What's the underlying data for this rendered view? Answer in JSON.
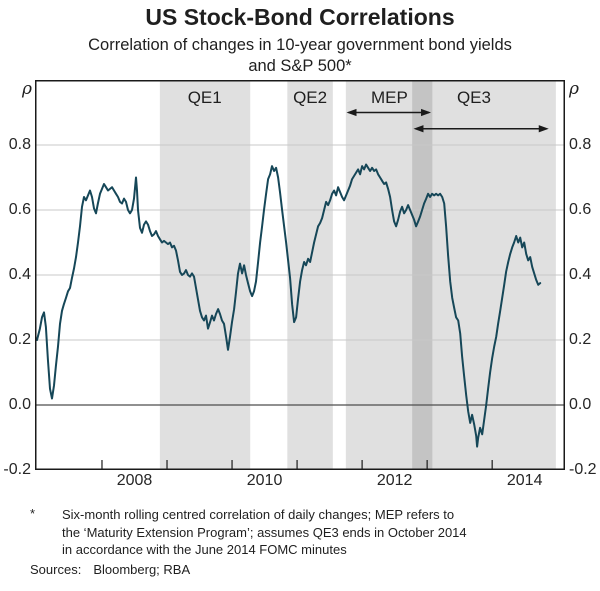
{
  "header": {
    "title": "US Stock-Bond Correlations",
    "subtitle_lines": [
      "Correlation of changes in 10-year government bond yields",
      "and S&P 500*"
    ]
  },
  "axis_units": {
    "left": "ρ",
    "right": "ρ"
  },
  "footnote": {
    "marker": "*",
    "lines": [
      "Six-month rolling centred correlation of daily changes; MEP refers to",
      "the ‘Maturity Extension Program’; assumes QE3 ends in October 2014",
      "in accordance with the June 2014 FOMC minutes"
    ]
  },
  "sources": {
    "label": "Sources:",
    "value": "Bloomberg; RBA"
  },
  "colors": {
    "line": "#164758",
    "band": "rgba(0,0,0,0.12)",
    "grid": "#c8c8c8",
    "zero_line": "#4d4d4d",
    "frame": "#1a1a1a",
    "text": "#1f1f1f"
  },
  "chart_data": {
    "type": "line",
    "title": "US Stock-Bond Correlations",
    "ylabel": "ρ",
    "ylim": [
      -0.2,
      1.0
    ],
    "yticks": [
      -0.2,
      0.0,
      0.2,
      0.4,
      0.6,
      0.8
    ],
    "ytick_labels": [
      "-0.2",
      "0.0",
      "0.2",
      "0.4",
      "0.6",
      "0.8"
    ],
    "xlim": [
      2006.97,
      2015.12
    ],
    "xticks": [
      2008,
      2009,
      2010,
      2011,
      2012,
      2013,
      2014
    ],
    "xtick_labels": [
      {
        "x": 2008.5,
        "label": "2008"
      },
      {
        "x": 2010.5,
        "label": "2010"
      },
      {
        "x": 2012.5,
        "label": "2012"
      },
      {
        "x": 2014.5,
        "label": "2014"
      }
    ],
    "grid": "horizontal",
    "legend": "none",
    "bands": [
      {
        "label": "QE1",
        "start": 2008.89,
        "end": 2010.28,
        "label_x": 2009.58
      },
      {
        "label": "QE2",
        "start": 2010.85,
        "end": 2011.55,
        "label_x": 2011.2
      },
      {
        "label": "MEP",
        "start": 2011.75,
        "end": 2013.08,
        "label_x": 2012.42
      },
      {
        "label": "QE3",
        "start": 2012.77,
        "end": 2014.98,
        "label_x": 2013.72
      }
    ],
    "arrows": [
      {
        "from": 2011.76,
        "to": 2013.06,
        "y": 0.9
      },
      {
        "from": 2012.79,
        "to": 2014.87,
        "y": 0.85
      }
    ],
    "series": [
      {
        "name": "correlation",
        "color": "#164758",
        "points": [
          [
            2007.0,
            0.2
          ],
          [
            2007.046,
            0.235
          ],
          [
            2007.077,
            0.27
          ],
          [
            2007.108,
            0.285
          ],
          [
            2007.138,
            0.24
          ],
          [
            2007.169,
            0.14
          ],
          [
            2007.2,
            0.05
          ],
          [
            2007.231,
            0.02
          ],
          [
            2007.262,
            0.06
          ],
          [
            2007.292,
            0.12
          ],
          [
            2007.323,
            0.18
          ],
          [
            2007.354,
            0.25
          ],
          [
            2007.385,
            0.29
          ],
          [
            2007.415,
            0.31
          ],
          [
            2007.446,
            0.33
          ],
          [
            2007.477,
            0.35
          ],
          [
            2007.508,
            0.36
          ],
          [
            2007.538,
            0.39
          ],
          [
            2007.569,
            0.42
          ],
          [
            2007.6,
            0.455
          ],
          [
            2007.631,
            0.5
          ],
          [
            2007.662,
            0.55
          ],
          [
            2007.692,
            0.61
          ],
          [
            2007.723,
            0.64
          ],
          [
            2007.754,
            0.63
          ],
          [
            2007.785,
            0.645
          ],
          [
            2007.815,
            0.66
          ],
          [
            2007.846,
            0.64
          ],
          [
            2007.877,
            0.605
          ],
          [
            2007.908,
            0.59
          ],
          [
            2007.938,
            0.62
          ],
          [
            2007.969,
            0.65
          ],
          [
            2008.0,
            0.665
          ],
          [
            2008.031,
            0.68
          ],
          [
            2008.062,
            0.67
          ],
          [
            2008.092,
            0.66
          ],
          [
            2008.123,
            0.665
          ],
          [
            2008.154,
            0.67
          ],
          [
            2008.185,
            0.66
          ],
          [
            2008.215,
            0.65
          ],
          [
            2008.246,
            0.64
          ],
          [
            2008.277,
            0.625
          ],
          [
            2008.308,
            0.62
          ],
          [
            2008.338,
            0.635
          ],
          [
            2008.369,
            0.625
          ],
          [
            2008.4,
            0.6
          ],
          [
            2008.431,
            0.59
          ],
          [
            2008.462,
            0.6
          ],
          [
            2008.492,
            0.635
          ],
          [
            2008.523,
            0.7
          ],
          [
            2008.538,
            0.66
          ],
          [
            2008.554,
            0.6
          ],
          [
            2008.585,
            0.545
          ],
          [
            2008.615,
            0.53
          ],
          [
            2008.646,
            0.555
          ],
          [
            2008.677,
            0.565
          ],
          [
            2008.708,
            0.555
          ],
          [
            2008.738,
            0.535
          ],
          [
            2008.769,
            0.52
          ],
          [
            2008.8,
            0.525
          ],
          [
            2008.831,
            0.535
          ],
          [
            2008.862,
            0.52
          ],
          [
            2008.892,
            0.51
          ],
          [
            2008.923,
            0.5
          ],
          [
            2008.954,
            0.505
          ],
          [
            2008.985,
            0.5
          ],
          [
            2009.015,
            0.495
          ],
          [
            2009.046,
            0.5
          ],
          [
            2009.077,
            0.485
          ],
          [
            2009.108,
            0.49
          ],
          [
            2009.138,
            0.475
          ],
          [
            2009.169,
            0.445
          ],
          [
            2009.2,
            0.41
          ],
          [
            2009.231,
            0.4
          ],
          [
            2009.262,
            0.405
          ],
          [
            2009.292,
            0.415
          ],
          [
            2009.323,
            0.4
          ],
          [
            2009.354,
            0.395
          ],
          [
            2009.385,
            0.405
          ],
          [
            2009.415,
            0.395
          ],
          [
            2009.446,
            0.36
          ],
          [
            2009.477,
            0.325
          ],
          [
            2009.508,
            0.29
          ],
          [
            2009.538,
            0.27
          ],
          [
            2009.569,
            0.26
          ],
          [
            2009.6,
            0.275
          ],
          [
            2009.631,
            0.235
          ],
          [
            2009.662,
            0.255
          ],
          [
            2009.692,
            0.275
          ],
          [
            2009.723,
            0.26
          ],
          [
            2009.754,
            0.28
          ],
          [
            2009.785,
            0.295
          ],
          [
            2009.815,
            0.28
          ],
          [
            2009.846,
            0.26
          ],
          [
            2009.877,
            0.25
          ],
          [
            2009.908,
            0.21
          ],
          [
            2009.938,
            0.17
          ],
          [
            2009.969,
            0.21
          ],
          [
            2010.0,
            0.255
          ],
          [
            2010.031,
            0.295
          ],
          [
            2010.062,
            0.35
          ],
          [
            2010.092,
            0.405
          ],
          [
            2010.123,
            0.435
          ],
          [
            2010.154,
            0.405
          ],
          [
            2010.185,
            0.43
          ],
          [
            2010.215,
            0.4
          ],
          [
            2010.246,
            0.375
          ],
          [
            2010.277,
            0.35
          ],
          [
            2010.308,
            0.335
          ],
          [
            2010.338,
            0.35
          ],
          [
            2010.369,
            0.38
          ],
          [
            2010.4,
            0.44
          ],
          [
            2010.431,
            0.5
          ],
          [
            2010.462,
            0.55
          ],
          [
            2010.492,
            0.6
          ],
          [
            2010.523,
            0.65
          ],
          [
            2010.554,
            0.695
          ],
          [
            2010.585,
            0.71
          ],
          [
            2010.615,
            0.735
          ],
          [
            2010.646,
            0.72
          ],
          [
            2010.677,
            0.73
          ],
          [
            2010.708,
            0.7
          ],
          [
            2010.738,
            0.655
          ],
          [
            2010.769,
            0.6
          ],
          [
            2010.8,
            0.55
          ],
          [
            2010.831,
            0.5
          ],
          [
            2010.862,
            0.445
          ],
          [
            2010.892,
            0.39
          ],
          [
            2010.923,
            0.31
          ],
          [
            2010.954,
            0.255
          ],
          [
            2010.985,
            0.27
          ],
          [
            2011.015,
            0.325
          ],
          [
            2011.046,
            0.38
          ],
          [
            2011.077,
            0.415
          ],
          [
            2011.108,
            0.44
          ],
          [
            2011.138,
            0.43
          ],
          [
            2011.169,
            0.45
          ],
          [
            2011.2,
            0.44
          ],
          [
            2011.231,
            0.47
          ],
          [
            2011.262,
            0.5
          ],
          [
            2011.292,
            0.525
          ],
          [
            2011.323,
            0.55
          ],
          [
            2011.354,
            0.56
          ],
          [
            2011.385,
            0.575
          ],
          [
            2011.415,
            0.6
          ],
          [
            2011.446,
            0.625
          ],
          [
            2011.477,
            0.615
          ],
          [
            2011.508,
            0.63
          ],
          [
            2011.538,
            0.65
          ],
          [
            2011.569,
            0.66
          ],
          [
            2011.6,
            0.645
          ],
          [
            2011.631,
            0.67
          ],
          [
            2011.662,
            0.655
          ],
          [
            2011.692,
            0.64
          ],
          [
            2011.723,
            0.63
          ],
          [
            2011.754,
            0.645
          ],
          [
            2011.785,
            0.66
          ],
          [
            2011.815,
            0.675
          ],
          [
            2011.846,
            0.695
          ],
          [
            2011.877,
            0.705
          ],
          [
            2011.908,
            0.715
          ],
          [
            2011.938,
            0.725
          ],
          [
            2011.969,
            0.71
          ],
          [
            2012.0,
            0.735
          ],
          [
            2012.031,
            0.725
          ],
          [
            2012.062,
            0.74
          ],
          [
            2012.092,
            0.73
          ],
          [
            2012.123,
            0.72
          ],
          [
            2012.154,
            0.73
          ],
          [
            2012.185,
            0.72
          ],
          [
            2012.215,
            0.725
          ],
          [
            2012.246,
            0.71
          ],
          [
            2012.277,
            0.7
          ],
          [
            2012.308,
            0.69
          ],
          [
            2012.338,
            0.68
          ],
          [
            2012.369,
            0.685
          ],
          [
            2012.4,
            0.665
          ],
          [
            2012.431,
            0.64
          ],
          [
            2012.462,
            0.6
          ],
          [
            2012.492,
            0.565
          ],
          [
            2012.523,
            0.55
          ],
          [
            2012.554,
            0.57
          ],
          [
            2012.585,
            0.595
          ],
          [
            2012.615,
            0.61
          ],
          [
            2012.646,
            0.59
          ],
          [
            2012.677,
            0.6
          ],
          [
            2012.708,
            0.615
          ],
          [
            2012.738,
            0.6
          ],
          [
            2012.769,
            0.585
          ],
          [
            2012.8,
            0.57
          ],
          [
            2012.831,
            0.55
          ],
          [
            2012.862,
            0.565
          ],
          [
            2012.892,
            0.58
          ],
          [
            2012.923,
            0.6
          ],
          [
            2012.954,
            0.62
          ],
          [
            2012.985,
            0.635
          ],
          [
            2013.015,
            0.65
          ],
          [
            2013.046,
            0.64
          ],
          [
            2013.077,
            0.65
          ],
          [
            2013.108,
            0.645
          ],
          [
            2013.138,
            0.65
          ],
          [
            2013.169,
            0.645
          ],
          [
            2013.2,
            0.65
          ],
          [
            2013.231,
            0.64
          ],
          [
            2013.262,
            0.62
          ],
          [
            2013.292,
            0.55
          ],
          [
            2013.323,
            0.46
          ],
          [
            2013.354,
            0.38
          ],
          [
            2013.385,
            0.33
          ],
          [
            2013.415,
            0.3
          ],
          [
            2013.446,
            0.27
          ],
          [
            2013.477,
            0.26
          ],
          [
            2013.508,
            0.22
          ],
          [
            2013.538,
            0.15
          ],
          [
            2013.569,
            0.09
          ],
          [
            2013.6,
            0.03
          ],
          [
            2013.631,
            -0.02
          ],
          [
            2013.662,
            -0.055
          ],
          [
            2013.692,
            -0.03
          ],
          [
            2013.723,
            -0.06
          ],
          [
            2013.754,
            -0.095
          ],
          [
            2013.769,
            -0.128
          ],
          [
            2013.785,
            -0.1
          ],
          [
            2013.815,
            -0.07
          ],
          [
            2013.846,
            -0.09
          ],
          [
            2013.877,
            -0.045
          ],
          [
            2013.908,
            0.0
          ],
          [
            2013.938,
            0.05
          ],
          [
            2013.969,
            0.1
          ],
          [
            2014.0,
            0.145
          ],
          [
            2014.031,
            0.18
          ],
          [
            2014.062,
            0.21
          ],
          [
            2014.092,
            0.25
          ],
          [
            2014.123,
            0.29
          ],
          [
            2014.154,
            0.33
          ],
          [
            2014.185,
            0.37
          ],
          [
            2014.215,
            0.41
          ],
          [
            2014.246,
            0.44
          ],
          [
            2014.277,
            0.465
          ],
          [
            2014.308,
            0.485
          ],
          [
            2014.338,
            0.5
          ],
          [
            2014.369,
            0.52
          ],
          [
            2014.4,
            0.5
          ],
          [
            2014.431,
            0.515
          ],
          [
            2014.462,
            0.485
          ],
          [
            2014.492,
            0.5
          ],
          [
            2014.523,
            0.465
          ],
          [
            2014.554,
            0.445
          ],
          [
            2014.585,
            0.455
          ],
          [
            2014.615,
            0.425
          ],
          [
            2014.646,
            0.405
          ],
          [
            2014.677,
            0.385
          ],
          [
            2014.708,
            0.37
          ],
          [
            2014.738,
            0.375
          ]
        ]
      }
    ]
  }
}
